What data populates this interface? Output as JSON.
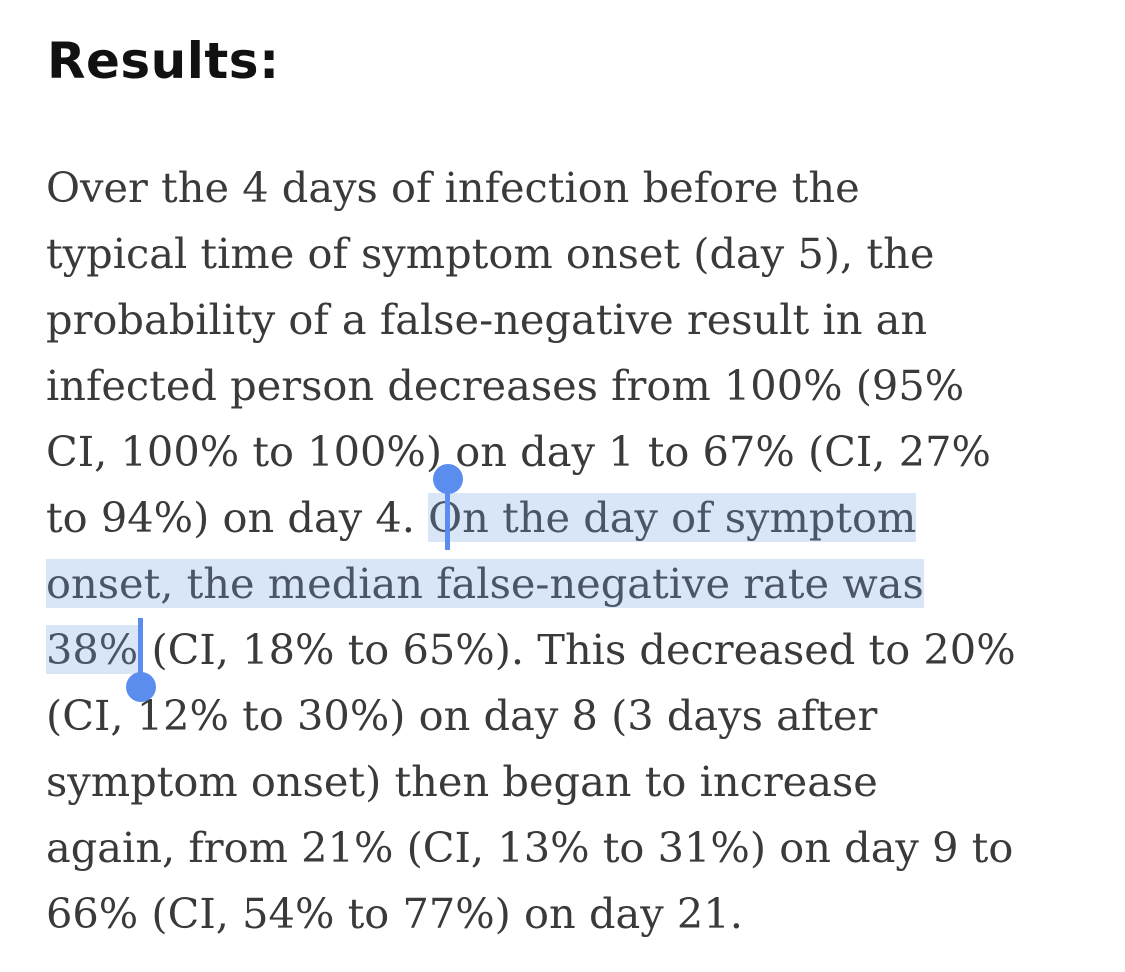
{
  "heading": "Results:",
  "paragraph": {
    "lines": [
      "Over the 4 days of infection before the",
      "typical time of symptom onset (day 5), the",
      "probability of a false-negative result in an",
      "infected person decreases from 100% (95%",
      "CI, 100% to 100%) on day 1 to 67% (CI, 27%",
      "to 94%) on day 4. ",
      "On the day of symptom",
      "onset, the median false-negative rate was",
      "38%",
      " (CI, 18% to 65%). This decreased to 20%",
      "(CI, 12% to 30%) on day 8 (3 days after",
      "symptom onset) then began to increase",
      "again, from 21% (CI, 13% to 31%) on day 9 to",
      "66% (CI, 54% to 77%) on day 21."
    ]
  },
  "selection": {
    "highlight_color": "#d9e6f8",
    "handle_color": "#5a8dee"
  }
}
